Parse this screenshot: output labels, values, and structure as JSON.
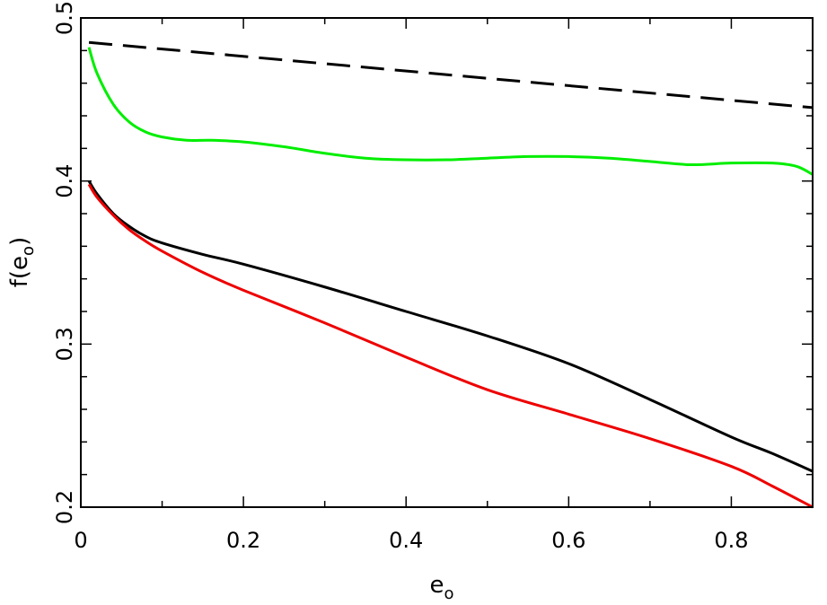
{
  "chart_data": {
    "type": "line",
    "title": "",
    "xlabel": {
      "main": "e",
      "sub": "o"
    },
    "ylabel": {
      "prefix": "f(e",
      "sub": "o",
      "suffix": ")"
    },
    "xlim": [
      0,
      0.9
    ],
    "ylim": [
      0.2,
      0.5
    ],
    "xticks": [
      0,
      0.2,
      0.4,
      0.6,
      0.8
    ],
    "xtick_labels": [
      "0",
      "0.2",
      "0.4",
      "0.6",
      "0.8"
    ],
    "yticks": [
      0.2,
      0.3,
      0.4,
      0.5
    ],
    "ytick_labels": [
      "0.2",
      "0.3",
      "0.4",
      "0.5"
    ],
    "x_minor_step": 0.1,
    "y_minor_step": 0.02,
    "grid": false,
    "legend": "none",
    "series": [
      {
        "color": "#000000",
        "dash": "dashed",
        "x": [
          0.01,
          0.9
        ],
        "y": [
          0.485,
          0.445
        ]
      },
      {
        "color": "#00ee00",
        "dash": "solid",
        "x": [
          0.01,
          0.02,
          0.04,
          0.06,
          0.08,
          0.1,
          0.13,
          0.16,
          0.2,
          0.25,
          0.3,
          0.35,
          0.4,
          0.45,
          0.5,
          0.55,
          0.6,
          0.65,
          0.7,
          0.75,
          0.8,
          0.85,
          0.88,
          0.9
        ],
        "y": [
          0.482,
          0.466,
          0.447,
          0.436,
          0.43,
          0.427,
          0.425,
          0.425,
          0.424,
          0.421,
          0.417,
          0.414,
          0.413,
          0.413,
          0.414,
          0.415,
          0.415,
          0.414,
          0.412,
          0.41,
          0.411,
          0.411,
          0.409,
          0.404
        ]
      },
      {
        "color": "#000000",
        "dash": "solid",
        "x": [
          0.01,
          0.02,
          0.04,
          0.06,
          0.08,
          0.1,
          0.15,
          0.2,
          0.3,
          0.4,
          0.5,
          0.6,
          0.7,
          0.8,
          0.85,
          0.9
        ],
        "y": [
          0.4,
          0.392,
          0.38,
          0.372,
          0.366,
          0.362,
          0.355,
          0.349,
          0.335,
          0.32,
          0.305,
          0.288,
          0.266,
          0.243,
          0.233,
          0.222
        ]
      },
      {
        "color": "#ee0000",
        "dash": "solid",
        "x": [
          0.01,
          0.02,
          0.04,
          0.06,
          0.08,
          0.1,
          0.15,
          0.2,
          0.3,
          0.4,
          0.5,
          0.6,
          0.7,
          0.8,
          0.85,
          0.9
        ],
        "y": [
          0.398,
          0.39,
          0.379,
          0.37,
          0.363,
          0.357,
          0.344,
          0.333,
          0.313,
          0.292,
          0.272,
          0.257,
          0.242,
          0.225,
          0.213,
          0.2
        ]
      }
    ]
  }
}
